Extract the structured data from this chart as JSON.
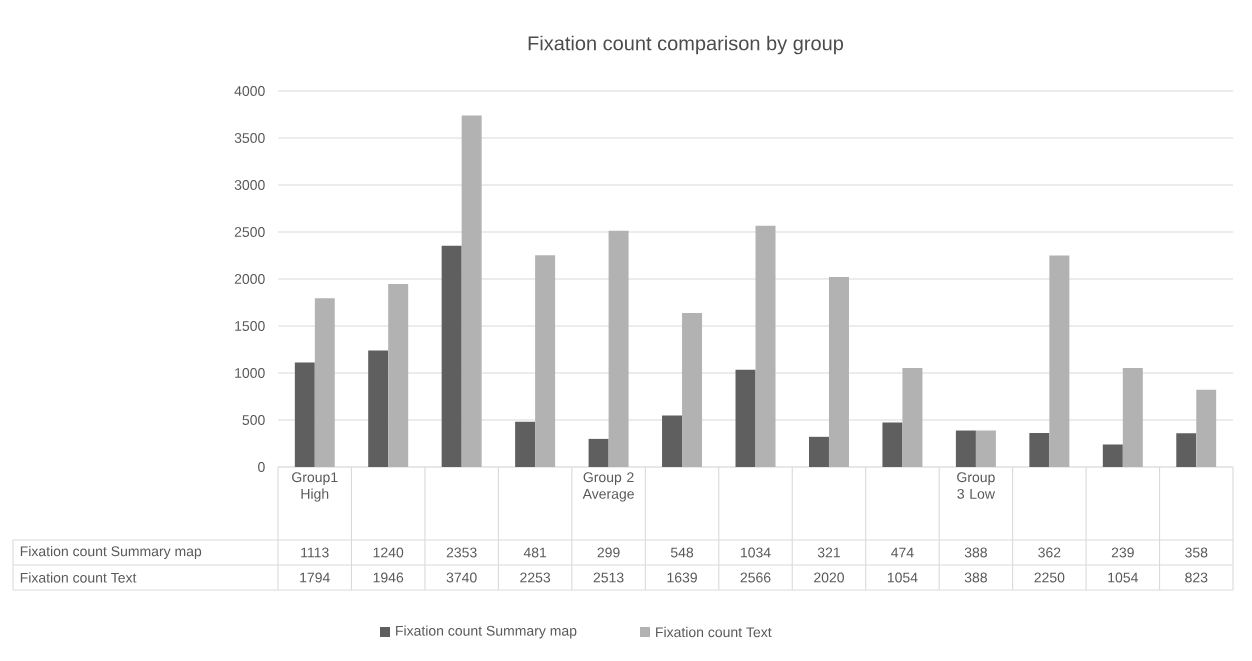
{
  "chart_data": {
    "type": "bar",
    "title": "Fixation count comparison by group",
    "categories": [
      "Group1 High",
      null,
      null,
      null,
      "Group 2 Average",
      null,
      null,
      null,
      null,
      "Group 3 Low",
      null,
      null,
      null
    ],
    "series": [
      {
        "name": "Fixation count Summary map",
        "color": "#5f5f5f",
        "values": [
          1113,
          1240,
          2353,
          481,
          299,
          548,
          1034,
          321,
          474,
          388,
          362,
          239,
          358
        ]
      },
      {
        "name": "Fixation count Text",
        "color": "#b2b2b2",
        "values": [
          1794,
          1946,
          3740,
          2253,
          2513,
          1639,
          2566,
          2020,
          1054,
          388,
          2250,
          1054,
          823
        ]
      }
    ],
    "ylim": [
      0,
      4000
    ],
    "yticks": [
      0,
      500,
      1000,
      1500,
      2000,
      2500,
      3000,
      3500,
      4000
    ],
    "grid": "y",
    "legend": "bottom",
    "data_labels": true
  }
}
